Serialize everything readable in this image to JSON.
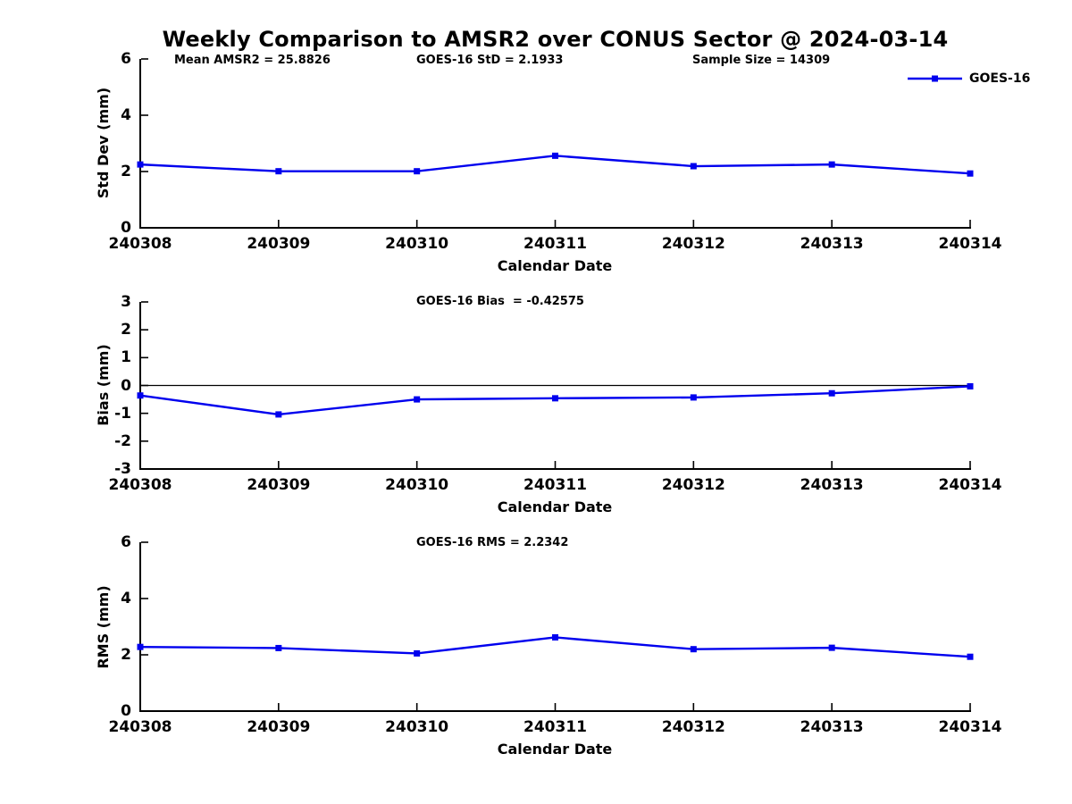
{
  "figure": {
    "title": "Weekly Comparison to AMSR2 over CONUS Sector @ 2024-03-14",
    "legend": {
      "label": "GOES-16",
      "position": "top-right",
      "marker": "filled-square"
    },
    "line_color": "#0000ee",
    "axis_color": "#000000",
    "background_color": "#ffffff"
  },
  "chart_data": [
    {
      "type": "line",
      "id": "std-dev",
      "annotations": [
        "Mean AMSR2 = 25.8826",
        "GOES-16 StD = 2.1933",
        "Sample Size = 14309"
      ],
      "xlabel": "Calendar Date",
      "ylabel": "Std Dev (mm)",
      "ylim": [
        0,
        6
      ],
      "yticks": [
        0,
        2,
        4,
        6
      ],
      "grid": false,
      "categories": [
        "240308",
        "240309",
        "240310",
        "240311",
        "240312",
        "240313",
        "240314"
      ],
      "series": [
        {
          "name": "GOES-16",
          "values": [
            2.25,
            2.01,
            2.01,
            2.56,
            2.19,
            2.25,
            1.93
          ]
        }
      ]
    },
    {
      "type": "line",
      "id": "bias",
      "annotations": [
        "GOES-16 Bias  = -0.42575"
      ],
      "xlabel": "Calendar Date",
      "ylabel": "Bias (mm)",
      "ylim": [
        -3,
        3
      ],
      "yticks": [
        -3,
        -2,
        -1,
        0,
        1,
        2,
        3
      ],
      "zero_line": true,
      "grid": false,
      "categories": [
        "240308",
        "240309",
        "240310",
        "240311",
        "240312",
        "240313",
        "240314"
      ],
      "series": [
        {
          "name": "GOES-16",
          "values": [
            -0.36,
            -1.04,
            -0.5,
            -0.46,
            -0.43,
            -0.28,
            -0.03
          ]
        }
      ]
    },
    {
      "type": "line",
      "id": "rms",
      "annotations": [
        "GOES-16 RMS = 2.2342"
      ],
      "xlabel": "Calendar Date",
      "ylabel": "RMS (mm)",
      "ylim": [
        0,
        6
      ],
      "yticks": [
        0,
        2,
        4,
        6
      ],
      "grid": false,
      "categories": [
        "240308",
        "240309",
        "240310",
        "240311",
        "240312",
        "240313",
        "240314"
      ],
      "series": [
        {
          "name": "GOES-16",
          "values": [
            2.28,
            2.24,
            2.05,
            2.62,
            2.2,
            2.25,
            1.93
          ]
        }
      ]
    }
  ]
}
